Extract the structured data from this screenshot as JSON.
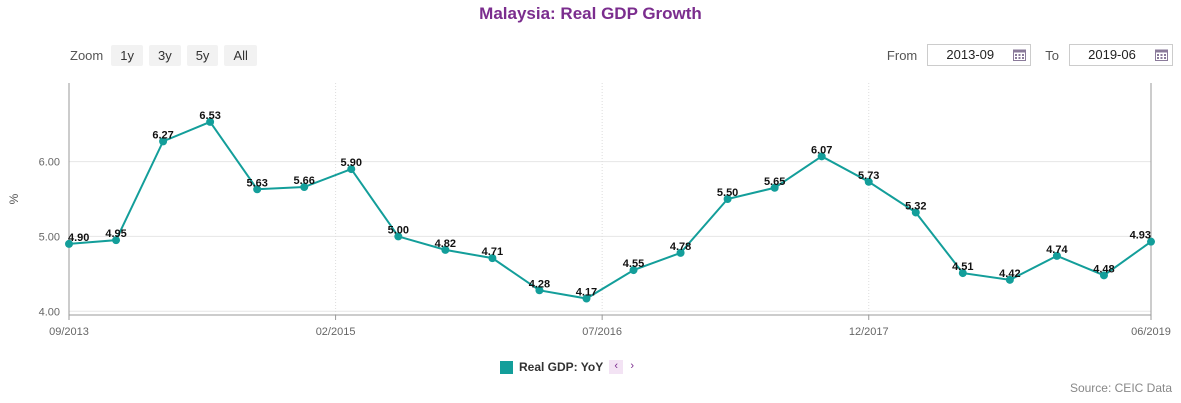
{
  "chart_data": {
    "type": "line",
    "title": "Malaysia: Real GDP Growth",
    "ylabel": "%",
    "x": [
      "2013-09",
      "2013-12",
      "2014-03",
      "2014-06",
      "2014-09",
      "2014-12",
      "2015-03",
      "2015-06",
      "2015-09",
      "2015-12",
      "2016-03",
      "2016-06",
      "2016-09",
      "2016-12",
      "2017-03",
      "2017-06",
      "2017-09",
      "2017-12",
      "2018-03",
      "2018-06",
      "2018-09",
      "2018-12",
      "2019-03",
      "2019-06"
    ],
    "series": [
      {
        "name": "Real GDP: YoY",
        "values": [
          4.9,
          4.95,
          6.27,
          6.53,
          5.63,
          5.66,
          5.9,
          5.0,
          4.82,
          4.71,
          4.28,
          4.17,
          4.55,
          4.78,
          5.5,
          5.65,
          6.07,
          5.73,
          5.32,
          4.51,
          4.42,
          4.74,
          4.48,
          4.93
        ]
      }
    ],
    "data_labels": [
      "4.90",
      "4.95",
      "6.27",
      "6.53",
      "5.63",
      "5.66",
      "5.90",
      "5.00",
      "4.82",
      "4.71",
      "4.28",
      "4.17",
      "4.55",
      "4.78",
      "5.50",
      "5.65",
      "6.07",
      "5.73",
      "5.32",
      "4.51",
      "4.42",
      "4.74",
      "4.48",
      "4.93"
    ],
    "yticks": [
      4.0,
      5.0,
      6.0
    ],
    "ytick_labels": [
      "4.00",
      "5.00",
      "6.00"
    ],
    "ylim": [
      3.95,
      7.05
    ],
    "xticks": [
      {
        "date": "2013-09",
        "label": "09/2013"
      },
      {
        "date": "2015-02",
        "label": "02/2015"
      },
      {
        "date": "2016-07",
        "label": "07/2016"
      },
      {
        "date": "2017-12",
        "label": "12/2017"
      },
      {
        "date": "2019-06",
        "label": "06/2019"
      }
    ],
    "line_color": "#139e9a",
    "grid": true,
    "legend_position": "bottom-center"
  },
  "zoom": {
    "label": "Zoom",
    "buttons": [
      "1y",
      "3y",
      "5y",
      "All"
    ]
  },
  "range": {
    "from_label": "From",
    "from_value": "2013-09",
    "to_label": "To",
    "to_value": "2019-06"
  },
  "legend": {
    "label": "Real GDP: YoY",
    "prev": "‹",
    "next": "›"
  },
  "source": "Source: CEIC Data",
  "colors": {
    "title": "#7b2d8e",
    "series": "#139e9a",
    "accent_bg": "#f3e3f4"
  }
}
